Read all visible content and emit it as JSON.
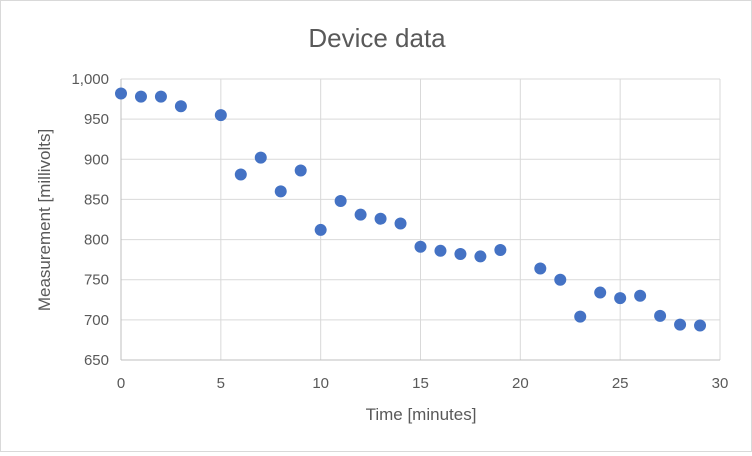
{
  "chart_data": {
    "type": "scatter",
    "title": "Device data",
    "xlabel": "Time [minutes]",
    "ylabel": "Measurement [millivolts]",
    "xlim": [
      0,
      30
    ],
    "ylim": [
      650,
      1000
    ],
    "x_ticks": [
      0,
      5,
      10,
      15,
      20,
      25,
      30
    ],
    "y_ticks": [
      650,
      700,
      750,
      800,
      850,
      900,
      950,
      1000
    ],
    "x_tick_labels": [
      "0",
      "5",
      "10",
      "15",
      "20",
      "25",
      "30"
    ],
    "y_tick_labels": [
      "650",
      "700",
      "750",
      "800",
      "850",
      "900",
      "950",
      "1,000"
    ],
    "grid": true,
    "legend": false,
    "marker_color": "#4472c4",
    "points": [
      {
        "x": 0,
        "y": 982
      },
      {
        "x": 1,
        "y": 978
      },
      {
        "x": 2,
        "y": 978
      },
      {
        "x": 3,
        "y": 966
      },
      {
        "x": 5,
        "y": 955
      },
      {
        "x": 6,
        "y": 881
      },
      {
        "x": 7,
        "y": 902
      },
      {
        "x": 8,
        "y": 860
      },
      {
        "x": 9,
        "y": 886
      },
      {
        "x": 10,
        "y": 812
      },
      {
        "x": 11,
        "y": 848
      },
      {
        "x": 12,
        "y": 831
      },
      {
        "x": 13,
        "y": 826
      },
      {
        "x": 14,
        "y": 820
      },
      {
        "x": 15,
        "y": 791
      },
      {
        "x": 16,
        "y": 786
      },
      {
        "x": 17,
        "y": 782
      },
      {
        "x": 18,
        "y": 779
      },
      {
        "x": 19,
        "y": 787
      },
      {
        "x": 21,
        "y": 764
      },
      {
        "x": 22,
        "y": 750
      },
      {
        "x": 23,
        "y": 704
      },
      {
        "x": 24,
        "y": 734
      },
      {
        "x": 25,
        "y": 727
      },
      {
        "x": 26,
        "y": 730
      },
      {
        "x": 27,
        "y": 705
      },
      {
        "x": 28,
        "y": 694
      },
      {
        "x": 29,
        "y": 693
      }
    ]
  }
}
